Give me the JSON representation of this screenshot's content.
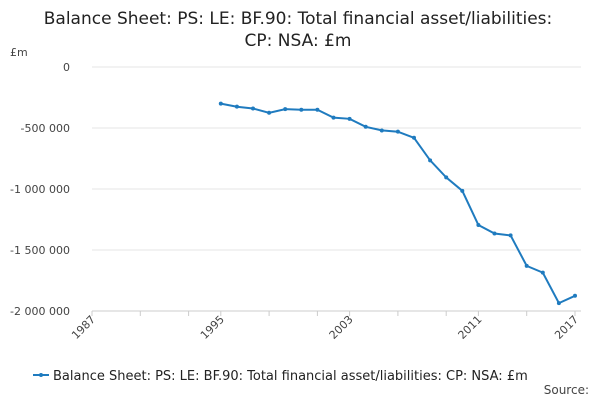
{
  "chart_data": {
    "type": "line",
    "title_lines": [
      "Balance Sheet: PS: LE: BF.90: Total financial asset/liabilities:",
      "CP: NSA: £m"
    ],
    "ylabel": "£m",
    "xlabel": "",
    "xlim": [
      1987,
      2017
    ],
    "ylim": [
      -2000000,
      0
    ],
    "y_ticks": [
      {
        "value": 0,
        "label": "0"
      },
      {
        "value": -500000,
        "label": "-500 000"
      },
      {
        "value": -1000000,
        "label": "-1 000 000"
      },
      {
        "value": -1500000,
        "label": "-1 500 000"
      },
      {
        "value": -2000000,
        "label": "-2 000 000"
      }
    ],
    "x_ticks": [
      {
        "value": 1987,
        "label": "1987"
      },
      {
        "value": 1995,
        "label": "1995"
      },
      {
        "value": 2003,
        "label": "2003"
      },
      {
        "value": 2011,
        "label": "2011"
      },
      {
        "value": 2017,
        "label": "2017"
      }
    ],
    "x_minor_ticks": [
      1987,
      1990,
      1993,
      1995,
      1998,
      2001,
      2003,
      2006,
      2009,
      2011,
      2014,
      2017
    ],
    "grid": "horizontal",
    "legend_position": "bottom",
    "series": [
      {
        "name": "Balance Sheet: PS: LE: BF.90: Total financial asset/liabilities: CP: NSA: £m",
        "color": "#1f7bbf",
        "x": [
          1995,
          1996,
          1997,
          1998,
          1999,
          2000,
          2001,
          2002,
          2003,
          2004,
          2005,
          2006,
          2007,
          2008,
          2009,
          2010,
          2011,
          2012,
          2013,
          2014,
          2015,
          2016,
          2017
        ],
        "values": [
          -300000,
          -325000,
          -340000,
          -375000,
          -345000,
          -350000,
          -350000,
          -415000,
          -425000,
          -490000,
          -520000,
          -530000,
          -580000,
          -765000,
          -905000,
          -1015000,
          -1295000,
          -1365000,
          -1380000,
          -1630000,
          -1685000,
          -1935000,
          -1875000
        ]
      }
    ],
    "source_label": "Source:"
  }
}
